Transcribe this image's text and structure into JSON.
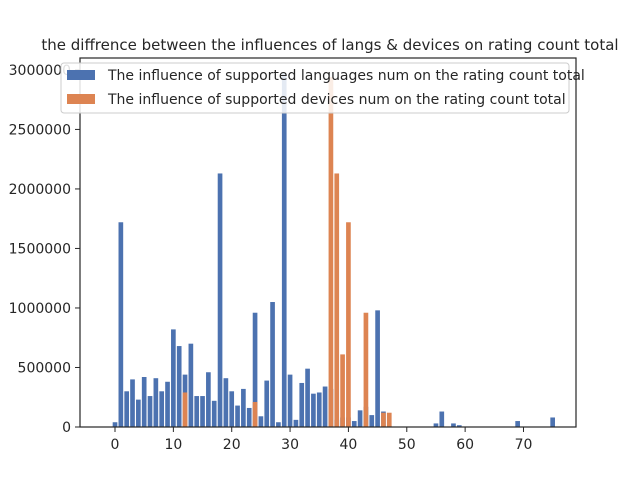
{
  "chart_data": {
    "type": "bar",
    "title": "the diffrence between the influences of langs & devices on rating count total",
    "xlabel": "",
    "ylabel": "",
    "xlim": [
      -6,
      79
    ],
    "ylim": [
      0,
      3100000
    ],
    "xticks": [
      0,
      10,
      20,
      30,
      40,
      50,
      60,
      70
    ],
    "yticks": [
      0,
      500000,
      1000000,
      1500000,
      2000000,
      2500000,
      3000000
    ],
    "grid": false,
    "legend_position": "top-left",
    "series": [
      {
        "name": "The influence of supported languages num on the rating count total",
        "color": "#4c72b0",
        "x": [
          0,
          1,
          2,
          3,
          4,
          5,
          6,
          7,
          8,
          9,
          10,
          11,
          12,
          13,
          14,
          15,
          16,
          17,
          18,
          19,
          20,
          21,
          22,
          23,
          24,
          25,
          26,
          27,
          28,
          29,
          30,
          31,
          32,
          33,
          34,
          35,
          36,
          37,
          38,
          39,
          40,
          41,
          42,
          43,
          44,
          45,
          46,
          47,
          55,
          56,
          58,
          59,
          69,
          75
        ],
        "values": [
          40000,
          1720000,
          300000,
          400000,
          230000,
          420000,
          260000,
          410000,
          300000,
          380000,
          820000,
          680000,
          440000,
          700000,
          260000,
          260000,
          460000,
          220000,
          2130000,
          410000,
          300000,
          180000,
          320000,
          160000,
          960000,
          90000,
          390000,
          1050000,
          40000,
          2970000,
          440000,
          60000,
          370000,
          490000,
          280000,
          290000,
          340000,
          320000,
          60000,
          80000,
          80000,
          50000,
          140000,
          170000,
          100000,
          980000,
          130000,
          10000,
          30000,
          130000,
          30000,
          15000,
          50000,
          80000
        ]
      },
      {
        "name": "The influence of supported devices num on the rating count total",
        "color": "#dd8452",
        "x": [
          12,
          24,
          37,
          38,
          39,
          40,
          43,
          46,
          47
        ],
        "values": [
          290000,
          210000,
          2940000,
          2130000,
          610000,
          1720000,
          960000,
          120000,
          120000
        ]
      }
    ]
  }
}
